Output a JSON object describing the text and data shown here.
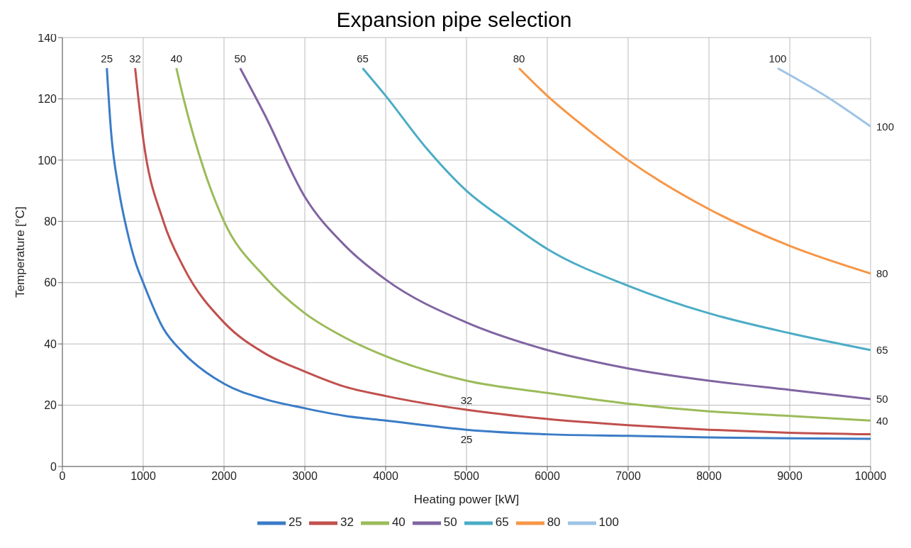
{
  "chart_data": {
    "type": "line",
    "title": "Expansion pipe selection",
    "xlabel": "Heating power [kW]",
    "ylabel": "Temperature [°C]",
    "xlim": [
      0,
      10000
    ],
    "xticks": [
      0,
      1000,
      2000,
      3000,
      4000,
      5000,
      6000,
      7000,
      8000,
      9000,
      10000
    ],
    "ylim": [
      0,
      140
    ],
    "yticks": [
      0,
      20,
      40,
      60,
      80,
      100,
      120,
      140
    ],
    "grid": true,
    "legend": "bottom",
    "marker": "none",
    "line_style": "solid",
    "series": [
      {
        "name": "25",
        "color": "#3a7cc7",
        "x": [
          550,
          600,
          700,
          800,
          900,
          1000,
          1250,
          1500,
          2000,
          2500,
          3000,
          3500,
          4000,
          5000,
          6000,
          7000,
          8000,
          9000,
          10000
        ],
        "values": [
          130,
          110,
          90,
          77,
          67,
          60,
          45,
          37,
          27,
          22,
          19,
          16.5,
          15,
          12,
          10.5,
          10,
          9.5,
          9.2,
          9
        ]
      },
      {
        "name": "32",
        "color": "#c0504d",
        "x": [
          900,
          1000,
          1250,
          1500,
          2000,
          2500,
          3000,
          3500,
          4000,
          5000,
          6000,
          7000,
          8000,
          9000,
          10000
        ],
        "values": [
          130,
          107,
          80,
          65,
          47,
          37,
          31,
          26,
          23,
          18.5,
          15.5,
          13.5,
          12,
          11,
          10.5
        ]
      },
      {
        "name": "40",
        "color": "#9bbb59",
        "x": [
          1410,
          1500,
          1750,
          2000,
          2500,
          3000,
          3500,
          4000,
          5000,
          6000,
          7000,
          8000,
          9000,
          10000
        ],
        "values": [
          130,
          120,
          97,
          80,
          62,
          50,
          42,
          36,
          28,
          24,
          20.5,
          18,
          16.5,
          15
        ]
      },
      {
        "name": "50",
        "color": "#8064a2",
        "x": [
          2200,
          2500,
          3000,
          3500,
          4000,
          5000,
          6000,
          7000,
          8000,
          9000,
          10000
        ],
        "values": [
          130,
          115,
          88,
          72,
          61,
          47,
          38,
          32,
          28,
          25,
          22
        ]
      },
      {
        "name": "65",
        "color": "#4bacc6",
        "x": [
          3715,
          4000,
          4500,
          5000,
          5500,
          6000,
          7000,
          8000,
          9000,
          10000
        ],
        "values": [
          130,
          121,
          104,
          90,
          80,
          71,
          59,
          50,
          43.5,
          38
        ]
      },
      {
        "name": "80",
        "color": "#f79646",
        "x": [
          5650,
          6000,
          6500,
          7000,
          8000,
          9000,
          10000
        ],
        "values": [
          130,
          121,
          110,
          100,
          84,
          72,
          63
        ]
      },
      {
        "name": "100",
        "color": "#9dc3e6",
        "x": [
          8850,
          9500,
          10000
        ],
        "values": [
          130,
          120,
          111
        ]
      }
    ],
    "annotations": [
      {
        "text": "25",
        "x": 550,
        "y": 130
      },
      {
        "text": "32",
        "x": 900,
        "y": 130
      },
      {
        "text": "40",
        "x": 1410,
        "y": 130
      },
      {
        "text": "50",
        "x": 2200,
        "y": 130
      },
      {
        "text": "65",
        "x": 3715,
        "y": 130
      },
      {
        "text": "80",
        "x": 5650,
        "y": 130
      },
      {
        "text": "100",
        "x": 8850,
        "y": 130
      },
      {
        "text": "100",
        "x": 10000,
        "y": 111
      },
      {
        "text": "80",
        "x": 10000,
        "y": 63
      },
      {
        "text": "65",
        "x": 10000,
        "y": 38
      },
      {
        "text": "50",
        "x": 10000,
        "y": 22
      },
      {
        "text": "40",
        "x": 10000,
        "y": 15
      },
      {
        "text": "32",
        "x": 5000,
        "y": 18.5
      },
      {
        "text": "25",
        "x": 5000,
        "y": 12
      }
    ]
  }
}
